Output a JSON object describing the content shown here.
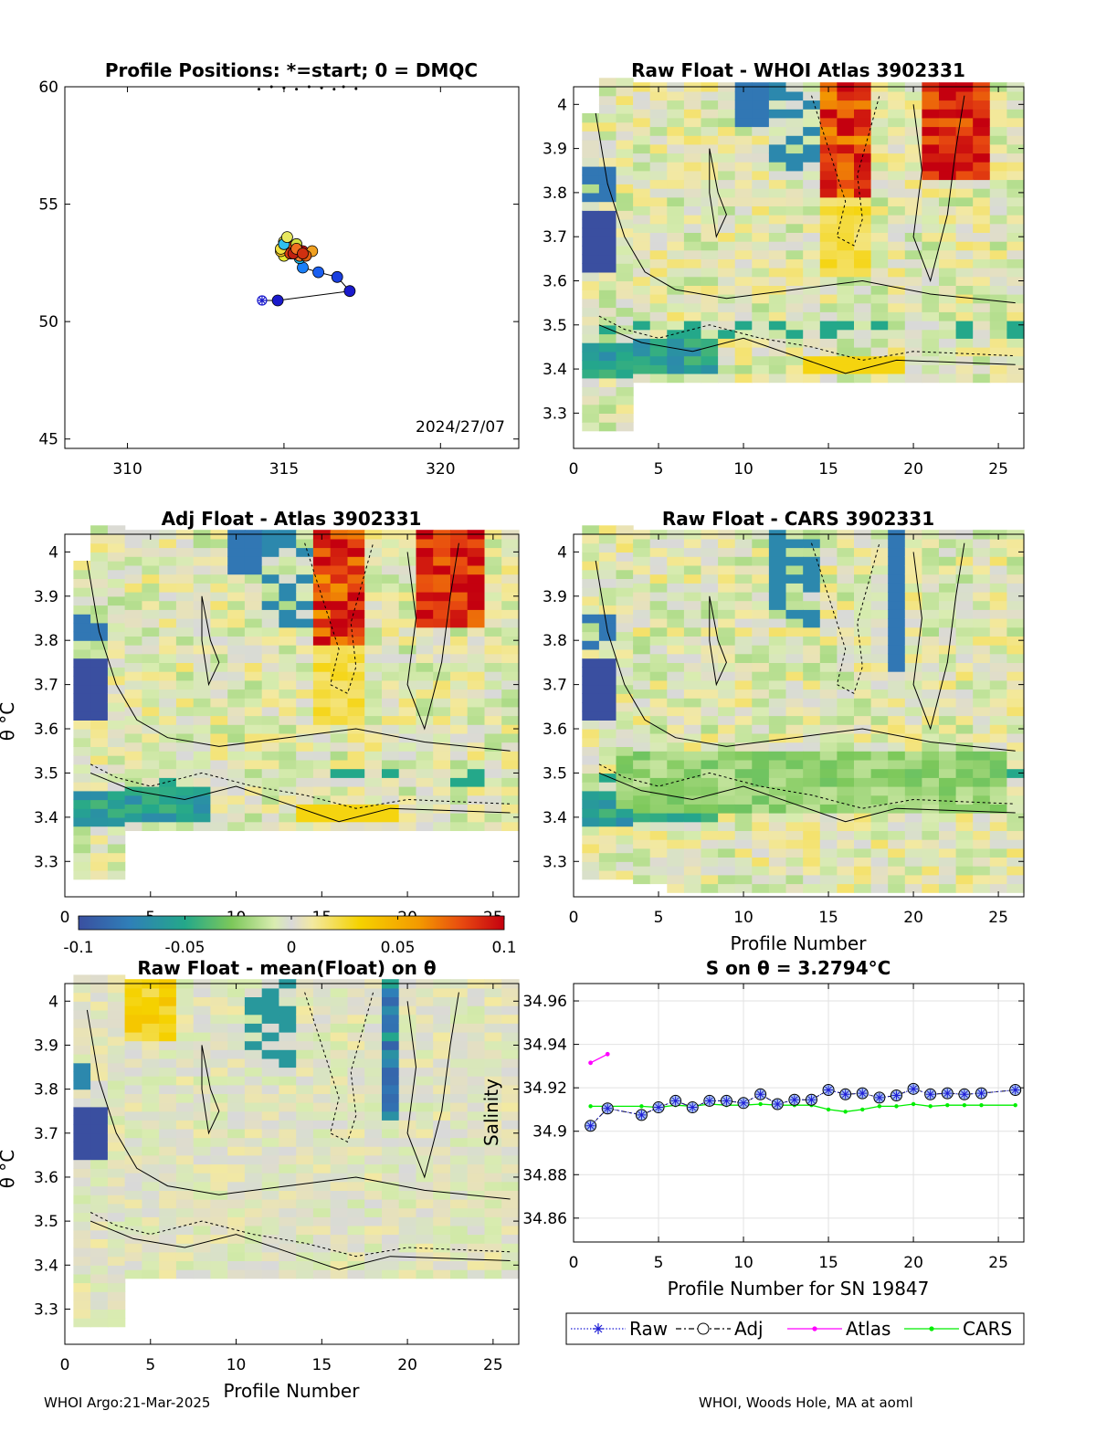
{
  "footer": {
    "left": "WHOI Argo:21-Mar-2025",
    "right": "WHOI, Woods Hole, MA at aoml"
  },
  "colors": {
    "raw": "#1f1fd6",
    "adj": "#000000",
    "atlas": "#ff00ff",
    "cars": "#00ee00",
    "colormap": [
      "#3a4fa0",
      "#2f7fb8",
      "#24a88a",
      "#4bbb55",
      "#a8d86a",
      "#d9ecb0",
      "#d9d9d9",
      "#f3e9a0",
      "#f5d200",
      "#f39a00",
      "#e84a10",
      "#c4000f"
    ]
  },
  "chart_data": [
    {
      "id": "positions",
      "type": "scatter",
      "title": "Profile Positions: *=start; 0 = DMQC",
      "xlabel": "",
      "ylabel": "",
      "xlim": [
        308,
        322.5
      ],
      "ylim": [
        44.6,
        60
      ],
      "xticks": [
        310,
        315,
        320
      ],
      "yticks": [
        45,
        50,
        55,
        60
      ],
      "date_label": "2024/27/07",
      "start": [
        314.3,
        50.9
      ],
      "track": {
        "lon": [
          314.3,
          314.8,
          317.1,
          316.7,
          316.1,
          315.6,
          315.5,
          315.2,
          315.0,
          314.9,
          315.3,
          315.6,
          315.5,
          315.2,
          315.0,
          315.4,
          315.9,
          315.7,
          315.3,
          314.9,
          315.0,
          315.4,
          315.6,
          315.1
        ],
        "lat": [
          50.9,
          50.9,
          51.3,
          51.9,
          52.1,
          52.3,
          52.7,
          52.9,
          52.8,
          53.0,
          53.2,
          53.0,
          52.8,
          52.9,
          53.4,
          53.3,
          53.0,
          52.8,
          52.9,
          53.1,
          53.3,
          53.1,
          52.9,
          53.6
        ]
      },
      "point_colors": [
        "#1a1acc",
        "#1a1acc",
        "#1a1acc",
        "#1a3fe0",
        "#1a5ff0",
        "#1a7ff8",
        "#18b8e8",
        "#20d0d0",
        "#e8e830",
        "#f0c020",
        "#e05010",
        "#c01010",
        "#f08030",
        "#e04010",
        "#f5f050",
        "#d0e040",
        "#f0a020",
        "#e06010",
        "#c02010",
        "#f0e040",
        "#30c0f0",
        "#f07020",
        "#d03010",
        "#e8e860"
      ],
      "top_cluster_lon": [
        314.2,
        314.6,
        315.0,
        315.4,
        315.8,
        316.2,
        316.6,
        316.9,
        317.3
      ],
      "top_cluster_lat": [
        59.9,
        60.0,
        59.95,
        59.9,
        60.0,
        59.95,
        59.9,
        60.0,
        59.92
      ]
    },
    {
      "id": "raw-whoi",
      "type": "heatmap",
      "title": "Raw Float - WHOI Atlas  3902331",
      "xlabel": "",
      "ylabel": "",
      "xlim": [
        0,
        26.5
      ],
      "ylim": [
        3.22,
        4.04
      ],
      "xticks": [
        0,
        5,
        10,
        15,
        20,
        25
      ],
      "yticks": [
        3.3,
        3.4,
        3.5,
        3.6,
        3.7,
        3.8,
        3.9,
        4.0
      ],
      "ytick_labels": [
        "3.3",
        "3.4",
        "3.5",
        "3.6",
        "3.7",
        "3.8",
        "3.9",
        "4"
      ],
      "clim": [
        -0.1,
        0.1
      ]
    },
    {
      "id": "adj-atlas",
      "type": "heatmap",
      "title": "Adj Float - Atlas  3902331",
      "xlabel": "",
      "ylabel": "θ °C",
      "xlim": [
        0,
        26.5
      ],
      "ylim": [
        3.22,
        4.04
      ],
      "xticks": [
        0,
        5,
        10,
        15,
        20,
        25
      ],
      "yticks": [
        3.3,
        3.4,
        3.5,
        3.6,
        3.7,
        3.8,
        3.9,
        4.0
      ],
      "ytick_labels": [
        "3.3",
        "3.4",
        "3.5",
        "3.6",
        "3.7",
        "3.8",
        "3.9",
        "4"
      ],
      "clim": [
        -0.1,
        0.1
      ],
      "colorbar": {
        "ticks": [
          -0.1,
          -0.05,
          0,
          0.05,
          0.1
        ],
        "labels": [
          "-0.1",
          "-0.05",
          "0",
          "0.05",
          "0.1"
        ]
      }
    },
    {
      "id": "raw-cars",
      "type": "heatmap",
      "title": "Raw Float - CARS  3902331",
      "xlabel": "Profile Number",
      "ylabel": "",
      "xlim": [
        0,
        26.5
      ],
      "ylim": [
        3.22,
        4.04
      ],
      "xticks": [
        0,
        5,
        10,
        15,
        20,
        25
      ],
      "yticks": [
        3.3,
        3.4,
        3.5,
        3.6,
        3.7,
        3.8,
        3.9,
        4.0
      ],
      "ytick_labels": [
        "3.3",
        "3.4",
        "3.5",
        "3.6",
        "3.7",
        "3.8",
        "3.9",
        "4"
      ],
      "clim": [
        -0.1,
        0.1
      ]
    },
    {
      "id": "raw-mean",
      "type": "heatmap",
      "title": "Raw Float - mean(Float) on θ",
      "xlabel": "Profile Number",
      "ylabel": "θ °C",
      "xlim": [
        0,
        26.5
      ],
      "ylim": [
        3.22,
        4.04
      ],
      "xticks": [
        0,
        5,
        10,
        15,
        20,
        25
      ],
      "yticks": [
        3.3,
        3.4,
        3.5,
        3.6,
        3.7,
        3.8,
        3.9,
        4.0
      ],
      "ytick_labels": [
        "3.3",
        "3.4",
        "3.5",
        "3.6",
        "3.7",
        "3.8",
        "3.9",
        "4"
      ],
      "clim": [
        -0.1,
        0.1
      ]
    },
    {
      "id": "salinity",
      "type": "line",
      "title": "S on θ = 3.2794°C",
      "xlabel": "Profile Number for SN 19847",
      "ylabel": "Salinity",
      "xlim": [
        0,
        26.5
      ],
      "ylim": [
        34.849,
        34.968
      ],
      "xticks": [
        0,
        5,
        10,
        15,
        20,
        25
      ],
      "yticks": [
        34.86,
        34.88,
        34.9,
        34.92,
        34.94,
        34.96
      ],
      "ytick_labels": [
        "34.86",
        "34.88",
        "34.9",
        "34.92",
        "34.94",
        "34.96"
      ],
      "legend_position": "bottom",
      "series": [
        {
          "name": "Raw",
          "x": [
            1,
            2,
            4,
            5,
            6,
            7,
            8,
            9,
            10,
            11,
            12,
            13,
            14,
            15,
            16,
            17,
            18,
            19,
            20,
            21,
            22,
            23,
            24,
            26
          ],
          "values": [
            34.9025,
            34.9105,
            34.9075,
            34.911,
            34.914,
            34.911,
            34.914,
            34.914,
            34.913,
            34.917,
            34.9125,
            34.9145,
            34.9145,
            34.919,
            34.917,
            34.9175,
            34.9155,
            34.9165,
            34.9195,
            34.917,
            34.9175,
            34.917,
            34.9175,
            34.919
          ]
        },
        {
          "name": "Adj",
          "x": [
            1,
            2,
            4,
            5,
            6,
            7,
            8,
            9,
            10,
            11,
            12,
            13,
            14,
            15,
            16,
            17,
            18,
            19,
            20,
            21,
            22,
            23,
            24,
            26
          ],
          "values": [
            34.9025,
            34.9105,
            34.9075,
            34.911,
            34.914,
            34.911,
            34.914,
            34.914,
            34.913,
            34.917,
            34.9125,
            34.9145,
            34.9145,
            34.919,
            34.917,
            34.9175,
            34.9155,
            34.9165,
            34.9195,
            34.917,
            34.9175,
            34.917,
            34.9175,
            34.919
          ]
        },
        {
          "name": "Atlas",
          "x": [
            1,
            2
          ],
          "values": [
            34.9315,
            34.9355
          ]
        },
        {
          "name": "CARS",
          "x": [
            1,
            2,
            4,
            5,
            6,
            7,
            8,
            9,
            10,
            11,
            12,
            13,
            14,
            15,
            16,
            17,
            18,
            19,
            20,
            21,
            22,
            23,
            24,
            26
          ],
          "values": [
            34.9115,
            34.9115,
            34.9115,
            34.911,
            34.912,
            34.9115,
            34.9125,
            34.912,
            34.912,
            34.9125,
            34.912,
            34.912,
            34.912,
            34.91,
            34.909,
            34.91,
            34.9115,
            34.9115,
            34.9125,
            34.9115,
            34.912,
            34.912,
            34.912,
            34.912
          ]
        }
      ]
    }
  ]
}
